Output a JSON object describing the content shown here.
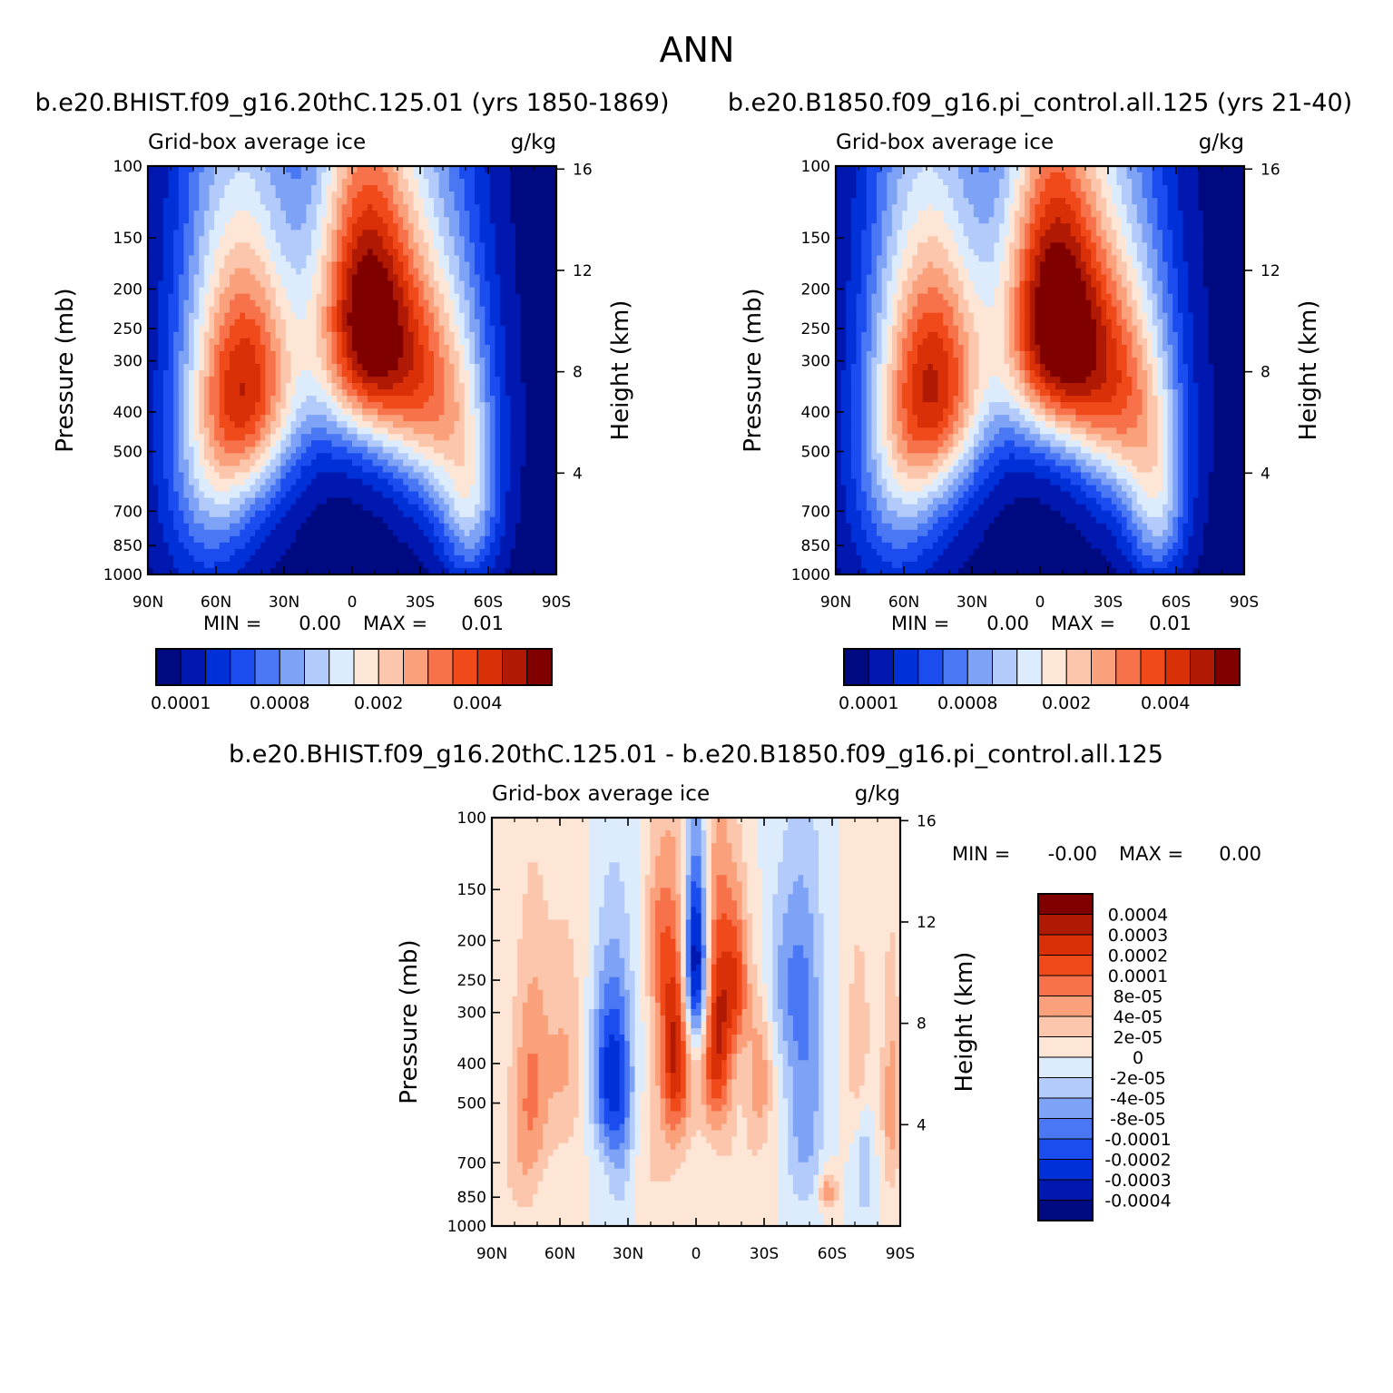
{
  "page_title": "ANN",
  "colors": {
    "abs_levels": [
      "#000a80",
      "#0018b0",
      "#0030d8",
      "#1a4cf0",
      "#4a78f4",
      "#7ea2f6",
      "#b2cbfa",
      "#dcecfc",
      "#fde6d6",
      "#fcc6ac",
      "#faa07a",
      "#f7724a",
      "#f04a1a",
      "#d93008",
      "#b01a04",
      "#800000"
    ],
    "diff_levels": [
      "#000a80",
      "#0018b0",
      "#0030d8",
      "#1a4cf0",
      "#4a78f4",
      "#7ea2f6",
      "#b2cbfa",
      "#dcecfc",
      "#fde6d6",
      "#fcc6ac",
      "#faa07a",
      "#f7724a",
      "#f04a1a",
      "#d93008",
      "#b01a04",
      "#800000"
    ]
  },
  "chart_data": [
    {
      "type": "heatmap",
      "id": "panel-1",
      "title": "b.e20.BHIST.f09_g16.20thC.125.01 (yrs 1850-1869)",
      "left_label": "Grid-box average ice",
      "right_label": "g/kg",
      "xlabel": "",
      "ylabel": "Pressure (mb)",
      "y2label": "Height (km)",
      "x_ticks": [
        "90N",
        "60N",
        "30N",
        "0",
        "30S",
        "60S",
        "90S"
      ],
      "x_range": [
        90,
        -90
      ],
      "y_ticks": [
        100,
        150,
        200,
        250,
        300,
        400,
        500,
        700,
        850,
        1000
      ],
      "y_range": [
        100,
        1000
      ],
      "y2_ticks": [
        16,
        12,
        8,
        4
      ],
      "stats": {
        "min_label": "MIN =",
        "min_value": "0.00",
        "max_label": "MAX =",
        "max_value": "0.01"
      },
      "colorbar_ticks": [
        "0.0001",
        "0.0008",
        "0.002",
        "0.004"
      ],
      "features": [
        {
          "lat": -5,
          "p": 230,
          "value": 6.0,
          "sx": 16,
          "sy": 150
        },
        {
          "lat": 42,
          "p": 320,
          "value": 3.4,
          "sx": 16,
          "sy": 170
        },
        {
          "lat": 52,
          "p": 420,
          "value": 2.0,
          "sx": 16,
          "sy": 260
        },
        {
          "lat": 65,
          "p": 550,
          "value": 1.5,
          "sx": 14,
          "sy": 380
        },
        {
          "lat": -30,
          "p": 330,
          "value": 2.6,
          "sx": 16,
          "sy": 170
        },
        {
          "lat": -42,
          "p": 420,
          "value": 1.8,
          "sx": 15,
          "sy": 240
        },
        {
          "lat": -52,
          "p": 700,
          "value": 2.0,
          "sx": 9,
          "sy": 230
        }
      ]
    },
    {
      "type": "heatmap",
      "id": "panel-2",
      "title": "b.e20.B1850.f09_g16.pi_control.all.125 (yrs 21-40)",
      "left_label": "Grid-box average ice",
      "right_label": "g/kg",
      "xlabel": "",
      "ylabel": "Pressure (mb)",
      "y2label": "Height (km)",
      "x_ticks": [
        "90N",
        "60N",
        "30N",
        "0",
        "30S",
        "60S",
        "90S"
      ],
      "x_range": [
        90,
        -90
      ],
      "y_ticks": [
        100,
        150,
        200,
        250,
        300,
        400,
        500,
        700,
        850,
        1000
      ],
      "y_range": [
        100,
        1000
      ],
      "y2_ticks": [
        16,
        12,
        8,
        4
      ],
      "stats": {
        "min_label": "MIN =",
        "min_value": "0.00",
        "max_label": "MAX =",
        "max_value": "0.01"
      },
      "colorbar_ticks": [
        "0.0001",
        "0.0008",
        "0.002",
        "0.004"
      ],
      "features": [
        {
          "lat": -5,
          "p": 230,
          "value": 6.2,
          "sx": 16,
          "sy": 150
        },
        {
          "lat": 42,
          "p": 320,
          "value": 3.5,
          "sx": 16,
          "sy": 170
        },
        {
          "lat": 52,
          "p": 420,
          "value": 2.0,
          "sx": 16,
          "sy": 260
        },
        {
          "lat": 65,
          "p": 550,
          "value": 1.5,
          "sx": 14,
          "sy": 380
        },
        {
          "lat": -30,
          "p": 330,
          "value": 2.8,
          "sx": 16,
          "sy": 170
        },
        {
          "lat": -42,
          "p": 420,
          "value": 1.9,
          "sx": 15,
          "sy": 240
        },
        {
          "lat": -52,
          "p": 700,
          "value": 2.0,
          "sx": 9,
          "sy": 230
        }
      ]
    },
    {
      "type": "heatmap",
      "id": "panel-diff",
      "title": "b.e20.BHIST.f09_g16.20thC.125.01 - b.e20.B1850.f09_g16.pi_control.all.125",
      "left_label": "Grid-box average ice",
      "right_label": "g/kg",
      "xlabel": "",
      "ylabel": "Pressure (mb)",
      "y2label": "Height (km)",
      "x_ticks": [
        "90N",
        "60N",
        "30N",
        "0",
        "30S",
        "60S",
        "90S"
      ],
      "x_range": [
        90,
        -90
      ],
      "y_ticks": [
        100,
        150,
        200,
        250,
        300,
        400,
        500,
        700,
        850,
        1000
      ],
      "y_range": [
        100,
        1000
      ],
      "y2_ticks": [
        16,
        12,
        8,
        4
      ],
      "stats": {
        "min_label": "MIN =",
        "min_value": "-0.00",
        "max_label": "MAX =",
        "max_value": "0.00"
      },
      "colorbar_labels": [
        "0.0004",
        "0.0003",
        "0.0002",
        "0.0001",
        "8e-05",
        "4e-05",
        "2e-05",
        "0",
        "-2e-05",
        "-4e-05",
        "-8e-05",
        "-0.0001",
        "-0.0002",
        "-0.0003",
        "-0.0004"
      ],
      "features": [
        {
          "lat": 0,
          "p": 230,
          "value": -6.0,
          "sx": 4,
          "sy": 90
        },
        {
          "lat": -9,
          "p": 330,
          "value": 4.5,
          "sx": 5,
          "sy": 160
        },
        {
          "lat": 9,
          "p": 360,
          "value": 4.5,
          "sx": 5,
          "sy": 160
        },
        {
          "lat": -18,
          "p": 250,
          "value": 2.8,
          "sx": 4,
          "sy": 80
        },
        {
          "lat": 17,
          "p": 200,
          "value": 1.8,
          "sx": 4,
          "sy": 70
        },
        {
          "lat": 38,
          "p": 420,
          "value": -3.5,
          "sx": 6,
          "sy": 150
        },
        {
          "lat": 33,
          "p": 600,
          "value": -1.6,
          "sx": 5,
          "sy": 250
        },
        {
          "lat": 72,
          "p": 450,
          "value": 1.7,
          "sx": 5,
          "sy": 220
        },
        {
          "lat": 58,
          "p": 400,
          "value": 1.5,
          "sx": 7,
          "sy": 180
        },
        {
          "lat": -28,
          "p": 420,
          "value": 2.0,
          "sx": 4,
          "sy": 130
        },
        {
          "lat": -48,
          "p": 480,
          "value": -2.0,
          "sx": 6,
          "sy": 280
        },
        {
          "lat": -40,
          "p": 250,
          "value": -1.5,
          "sx": 8,
          "sy": 90
        },
        {
          "lat": -58,
          "p": 820,
          "value": 2.0,
          "sx": 3,
          "sy": 70
        },
        {
          "lat": -72,
          "p": 380,
          "value": 1.5,
          "sx": 4,
          "sy": 150
        },
        {
          "lat": -86,
          "p": 500,
          "value": 1.8,
          "sx": 3,
          "sy": 230
        },
        {
          "lat": -74,
          "p": 700,
          "value": -1.3,
          "sx": 3,
          "sy": 200
        },
        {
          "lat": 78,
          "p": 650,
          "value": 1.0,
          "sx": 6,
          "sy": 260
        },
        {
          "lat": 20,
          "p": 700,
          "value": 0.8,
          "sx": 10,
          "sy": 200
        },
        {
          "lat": -20,
          "p": 800,
          "value": 0.7,
          "sx": 8,
          "sy": 200
        }
      ]
    }
  ]
}
